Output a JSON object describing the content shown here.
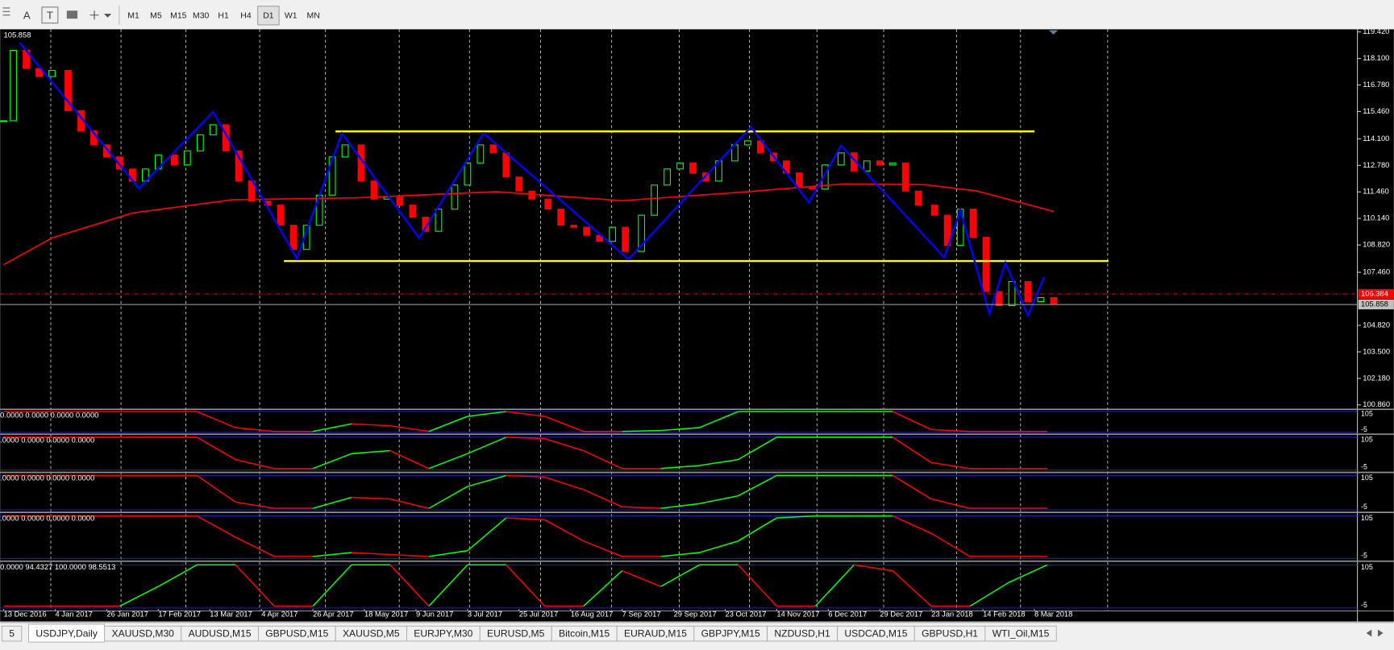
{
  "toolbar": {
    "tools": [
      "A",
      "T"
    ],
    "timeframes": [
      "M1",
      "M5",
      "M15",
      "M30",
      "H1",
      "H4",
      "D1",
      "W1",
      "MN"
    ],
    "active": "D1"
  },
  "chart_data": [
    {
      "type": "candlestick",
      "up_color": "#00ff00",
      "down_color": "#ff0000",
      "x": [
        0,
        3,
        7,
        11,
        15,
        20,
        24,
        28,
        32,
        36,
        40,
        44,
        48,
        53,
        57,
        61,
        65,
        69,
        73,
        77,
        82,
        86,
        90,
        94,
        98,
        102,
        106,
        111,
        115,
        119,
        123,
        127,
        131,
        135,
        140,
        144,
        148,
        152,
        156,
        160,
        164,
        169,
        173,
        177,
        181,
        185,
        189,
        193,
        198,
        202,
        206,
        210,
        214,
        218,
        222,
        227,
        231,
        235,
        239,
        243,
        247,
        251,
        255,
        260,
        264,
        268,
        272,
        276,
        280,
        284,
        289,
        293,
        297,
        301,
        305,
        309,
        313,
        318,
        322,
        326
      ],
      "values": [
        115.0,
        118.5,
        117.6,
        117.2,
        117.5,
        115.5,
        114.5,
        113.8,
        113.2,
        112.6,
        112.0,
        112.6,
        113.3,
        112.8,
        113.5,
        114.3,
        114.8,
        113.5,
        112.0,
        111.0,
        110.8,
        109.8,
        108.6,
        109.8,
        111.3,
        113.2,
        113.8,
        112.0,
        111.1,
        111.2,
        110.8,
        110.2,
        109.5,
        110.6,
        111.8,
        112.9,
        113.8,
        113.4,
        112.2,
        111.5,
        111.1,
        110.6,
        109.8,
        109.7,
        109.3,
        109.0,
        109.7,
        108.5,
        110.3,
        111.8,
        112.6,
        112.9,
        112.4,
        112.0,
        113.0,
        113.8,
        114.0,
        113.4,
        113.0,
        112.4,
        111.7,
        111.6,
        112.8,
        113.4,
        112.5,
        113.0,
        112.8,
        112.9,
        111.5,
        110.8,
        110.3,
        108.8,
        110.6,
        109.2,
        106.5,
        105.8,
        107.0,
        106.0,
        106.2,
        105.9
      ],
      "overlays": [
        {
          "type": "line",
          "color": "#ff0000",
          "x": [
            0,
            15,
            40,
            71,
            109,
            153,
            192,
            231,
            261,
            286,
            302,
            326
          ],
          "values": [
            107.84,
            109.17,
            110.41,
            111.07,
            111.16,
            111.47,
            111.02,
            111.47,
            111.86,
            111.82,
            111.51,
            110.49
          ]
        },
        {
          "type": "line",
          "color": "#ffff00",
          "x": [
            103,
            320
          ],
          "values": [
            114.47,
            114.47
          ]
        },
        {
          "type": "line",
          "color": "#ffff00",
          "x": [
            87,
            343
          ],
          "values": [
            108.02,
            108.02
          ]
        },
        {
          "type": "line",
          "color": "#0000ff",
          "x": [
            5,
            42,
            65,
            91,
            105,
            129,
            149,
            194,
            232,
            250,
            260,
            292,
            297,
            306,
            311,
            318,
            323
          ],
          "values": [
            118.89,
            111.64,
            115.44,
            108.15,
            114.38,
            109.17,
            114.38,
            108.11,
            114.69,
            110.94,
            113.76,
            108.2,
            110.54,
            105.41,
            107.93,
            105.32,
            107.22
          ]
        }
      ],
      "price_lines": [
        {
          "value": 106.384,
          "color": "#ff0000"
        },
        {
          "value": 105.858,
          "color": "#c0c0c0"
        }
      ],
      "xlim": [
        0,
        420
      ],
      "xticks": [
        {
          "value": 0,
          "label": "13 Dec 2016"
        },
        {
          "value": 16,
          "label": "4 Jan 2017"
        },
        {
          "value": 32,
          "label": "26 Jan 2017"
        },
        {
          "value": 48,
          "label": "17 Feb 2017"
        },
        {
          "value": 64,
          "label": "13 Mar 2017"
        },
        {
          "value": 80,
          "label": "4 Apr 2017"
        },
        {
          "value": 96,
          "label": "26 Apr 2017"
        },
        {
          "value": 112,
          "label": "18 May 2017"
        },
        {
          "value": 128,
          "label": "9 Jun 2017"
        },
        {
          "value": 144,
          "label": "3 Jul 2017"
        },
        {
          "value": 160,
          "label": "25 Jul 2017"
        },
        {
          "value": 176,
          "label": "16 Aug 2017"
        },
        {
          "value": 192,
          "label": "7 Sep 2017"
        },
        {
          "value": 208,
          "label": "29 Sep 2017"
        },
        {
          "value": 224,
          "label": "23 Oct 2017"
        },
        {
          "value": 240,
          "label": "14 Nov 2017"
        },
        {
          "value": 256,
          "label": "6 Dec 2017"
        },
        {
          "value": 272,
          "label": "29 Dec 2017"
        },
        {
          "value": 288,
          "label": "23 Jan 2018"
        },
        {
          "value": 304,
          "label": "14 Feb 2018"
        },
        {
          "value": 320,
          "label": "8 Mar 2018"
        }
      ],
      "ylim": [
        100.64,
        119.55
      ],
      "yticks": [
        {
          "value": 119.42,
          "label": "119.420"
        },
        {
          "value": 118.1,
          "label": "118.100"
        },
        {
          "value": 116.78,
          "label": "116.780"
        },
        {
          "value": 115.46,
          "label": "115.460"
        },
        {
          "value": 114.1,
          "label": "114.100"
        },
        {
          "value": 112.78,
          "label": "112.780"
        },
        {
          "value": 111.46,
          "label": "111.460"
        },
        {
          "value": 110.14,
          "label": "110.140"
        },
        {
          "value": 108.82,
          "label": "108.820"
        },
        {
          "value": 107.46,
          "label": "107.460"
        },
        {
          "value": 104.82,
          "label": "104.820"
        },
        {
          "value": 103.5,
          "label": "103.500"
        },
        {
          "value": 102.18,
          "label": "102.180"
        },
        {
          "value": 100.86,
          "label": "100.860"
        }
      ]
    },
    {
      "type": "line",
      "label": "0.0000 0.0000 0.0000 0.0000",
      "up_color": "#00ff00",
      "down_color": "#ff0000",
      "grid_color": "#2828d0",
      "xlim": [
        0,
        420
      ],
      "ylim": [
        -10,
        112
      ],
      "yticks": [
        105,
        -5
      ],
      "x": [
        0,
        12,
        24,
        36,
        48,
        60,
        72,
        84,
        96,
        108,
        120,
        132,
        144,
        156,
        168,
        180,
        192,
        204,
        216,
        228,
        240,
        252,
        264,
        276,
        288,
        300,
        312,
        324
      ],
      "values": [
        105,
        105,
        105,
        105,
        105,
        105,
        20,
        0,
        0,
        40,
        30,
        0,
        80,
        105,
        80,
        0,
        0,
        5,
        20,
        105,
        105,
        105,
        105,
        105,
        10,
        0,
        0,
        0
      ]
    },
    {
      "type": "line",
      "label": ".0000 0.0000 0.0000 0.0000",
      "up_color": "#00ff00",
      "down_color": "#ff0000",
      "grid_color": "#2828d0",
      "xlim": [
        0,
        420
      ],
      "ylim": [
        -10,
        112
      ],
      "yticks": [
        105,
        -5
      ],
      "x": [
        0,
        12,
        24,
        36,
        48,
        60,
        72,
        84,
        96,
        108,
        120,
        132,
        144,
        156,
        168,
        180,
        192,
        204,
        216,
        228,
        240,
        252,
        264,
        276,
        288,
        300,
        312,
        324
      ],
      "values": [
        105,
        105,
        105,
        105,
        105,
        105,
        30,
        0,
        0,
        50,
        60,
        0,
        50,
        105,
        100,
        60,
        0,
        0,
        10,
        30,
        105,
        105,
        105,
        105,
        20,
        0,
        0,
        0
      ]
    },
    {
      "type": "line",
      "label": ".0000 0.0000 0.0000 0.0000",
      "up_color": "#00ff00",
      "down_color": "#ff0000",
      "grid_color": "#2828d0",
      "xlim": [
        0,
        420
      ],
      "ylim": [
        -10,
        112
      ],
      "yticks": [
        105,
        -5
      ],
      "x": [
        0,
        12,
        24,
        36,
        48,
        60,
        72,
        84,
        96,
        108,
        120,
        132,
        144,
        156,
        168,
        180,
        192,
        204,
        216,
        228,
        240,
        252,
        264,
        276,
        288,
        300,
        312,
        324
      ],
      "values": [
        105,
        105,
        105,
        105,
        105,
        105,
        20,
        0,
        0,
        35,
        30,
        0,
        70,
        105,
        100,
        60,
        5,
        0,
        15,
        40,
        105,
        105,
        105,
        105,
        30,
        0,
        0,
        0
      ]
    },
    {
      "type": "line",
      "label": ".0000 0.0000 0.0000 0.0000",
      "up_color": "#00ff00",
      "down_color": "#ff0000",
      "grid_color": "#2828d0",
      "xlim": [
        0,
        420
      ],
      "ylim": [
        -10,
        112
      ],
      "yticks": [
        105,
        -5
      ],
      "x": [
        0,
        12,
        24,
        36,
        48,
        60,
        72,
        84,
        96,
        108,
        120,
        132,
        144,
        156,
        168,
        180,
        192,
        204,
        216,
        228,
        240,
        252,
        264,
        276,
        288,
        300,
        312,
        324
      ],
      "values": [
        105,
        105,
        105,
        105,
        105,
        105,
        50,
        0,
        0,
        10,
        5,
        0,
        15,
        100,
        95,
        40,
        0,
        0,
        10,
        40,
        100,
        105,
        105,
        105,
        60,
        0,
        0,
        0
      ]
    },
    {
      "type": "line",
      "label": "0.0000 94.4327 100.0000 98.5513",
      "up_color": "#00ff00",
      "down_color": "#ff0000",
      "grid_color": "#2828d0",
      "xlim": [
        0,
        420
      ],
      "ylim": [
        -10,
        112
      ],
      "yticks": [
        105,
        -5
      ],
      "x": [
        0,
        12,
        24,
        36,
        48,
        60,
        72,
        84,
        96,
        108,
        120,
        132,
        144,
        156,
        168,
        180,
        192,
        204,
        216,
        228,
        240,
        252,
        264,
        276,
        288,
        300,
        312,
        324
      ],
      "values": [
        0,
        0,
        0,
        0,
        50,
        105,
        105,
        0,
        0,
        105,
        105,
        0,
        105,
        105,
        0,
        0,
        90,
        50,
        105,
        105,
        0,
        0,
        105,
        90,
        0,
        0,
        60,
        105
      ]
    }
  ],
  "tabs": {
    "items": [
      "5",
      "USDJPY,Daily",
      "XAUUSD,M30",
      "AUDUSD,M15",
      "GBPUSD,M15",
      "XAUUSD,M5",
      "EURJPY,M30",
      "EURUSD,M5",
      "Bitcoin,M15",
      "EURAUD,M15",
      "GBPJPY,M15",
      "NZDUSD,H1",
      "USDCAD,M15",
      "GBPUSD,H1",
      "WTI_Oil,M15"
    ],
    "active": "USDJPY,Daily"
  }
}
